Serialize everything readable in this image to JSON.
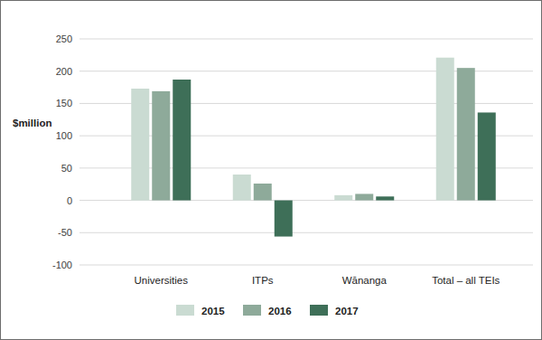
{
  "chart_data": {
    "type": "bar",
    "y_label": "$million",
    "categories": [
      "Universities",
      "ITPs",
      "Wānanga",
      "Total – all TEIs"
    ],
    "series": [
      {
        "name": "2015",
        "color": "#cadbd2",
        "values": [
          173,
          40,
          8,
          221
        ]
      },
      {
        "name": "2016",
        "color": "#8eaa9a",
        "values": [
          169,
          26,
          10,
          205
        ]
      },
      {
        "name": "2017",
        "color": "#3e6f58",
        "values": [
          187,
          -56,
          6,
          136
        ]
      }
    ],
    "ylim": [
      -100,
      250
    ],
    "yticks": [
      -100,
      -50,
      0,
      50,
      100,
      150,
      200,
      250
    ],
    "grid": true,
    "legend": "bottom"
  }
}
